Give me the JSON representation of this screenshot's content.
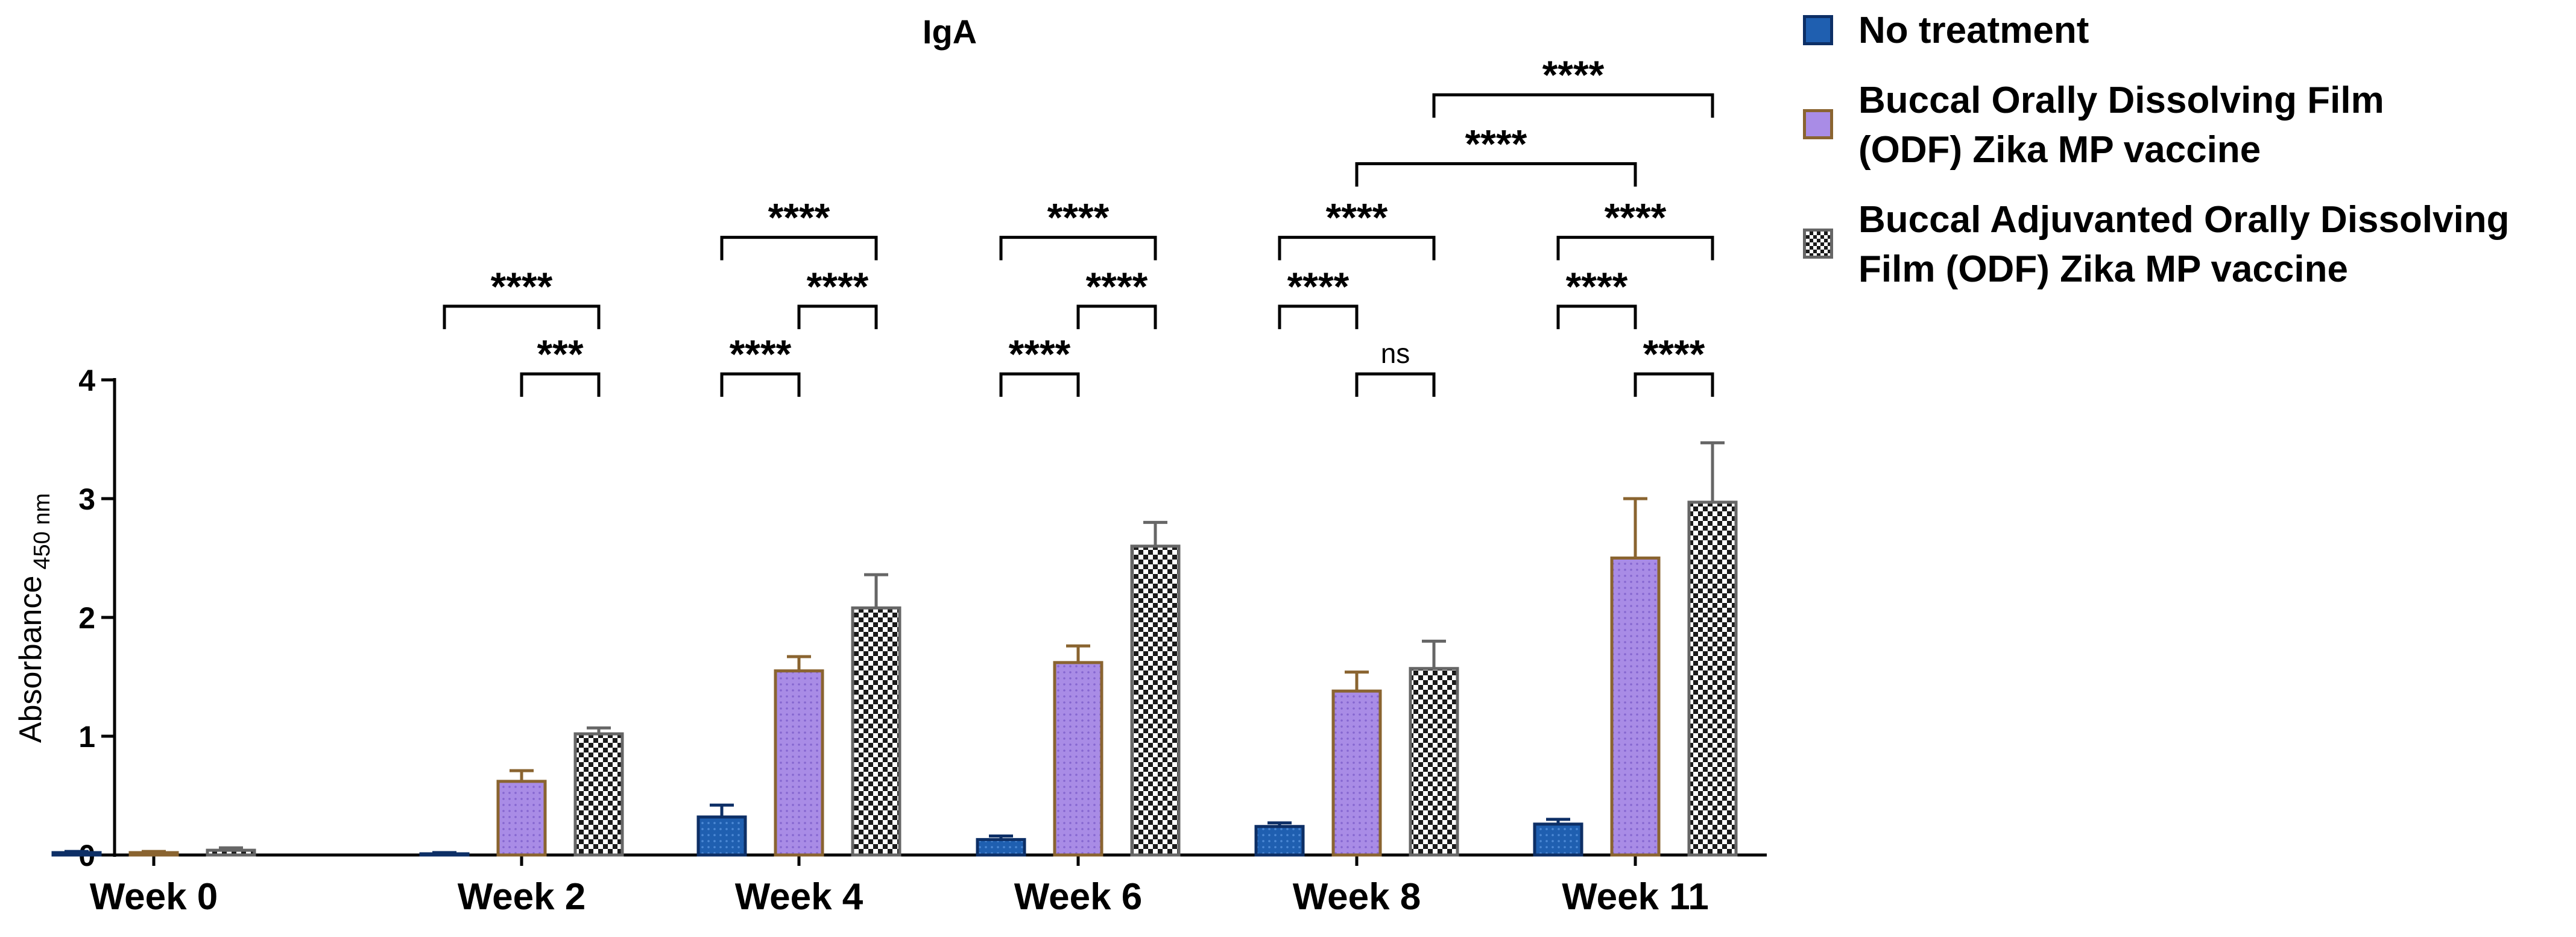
{
  "chart_data": {
    "type": "bar",
    "title": "IgA",
    "ylabel": "Absorbance",
    "ylabel_subscript": "450 nm",
    "xlabel": "",
    "ylim": [
      0,
      4
    ],
    "yticks": [
      "0",
      "1",
      "2",
      "3",
      "4"
    ],
    "categories": [
      "Week 0",
      "Week 2",
      "Week 4",
      "Week 6",
      "Week 8",
      "Week 11"
    ],
    "series": [
      {
        "name": "No treatment",
        "values": [
          0.02,
          0.01,
          0.32,
          0.13,
          0.24,
          0.26
        ],
        "errors": [
          0.01,
          0.01,
          0.1,
          0.03,
          0.03,
          0.04
        ],
        "fill": "#1f5fb0",
        "stroke": "#0d2f66",
        "pattern": "dots"
      },
      {
        "name": "Buccal Orally Dissolving Film\n(ODF) Zika MP vaccine",
        "values": [
          0.02,
          0.62,
          1.55,
          1.62,
          1.38,
          2.5
        ],
        "errors": [
          0.01,
          0.09,
          0.12,
          0.14,
          0.16,
          0.5
        ],
        "fill": "#a98ce6",
        "stroke": "#8a6430",
        "pattern": "dots"
      },
      {
        "name": "Buccal Adjuvanted Orally Dissolving\nFilm (ODF) Zika MP vaccine",
        "values": [
          0.04,
          1.02,
          2.08,
          2.6,
          1.57,
          2.97
        ],
        "errors": [
          0.02,
          0.05,
          0.28,
          0.2,
          0.23,
          0.5
        ],
        "fill": "checker",
        "stroke": "#666666",
        "pattern": "checker"
      }
    ],
    "significance": [
      {
        "group": 1,
        "from": 1,
        "to": 2,
        "label": "***",
        "level": 4.05
      },
      {
        "group": 1,
        "from": 0,
        "to": 2,
        "label": "****",
        "level": 4.62
      },
      {
        "group": 2,
        "from": 0,
        "to": 1,
        "label": "****",
        "level": 4.05
      },
      {
        "group": 2,
        "from": 1,
        "to": 2,
        "label": "****",
        "level": 4.62
      },
      {
        "group": 2,
        "from": 0,
        "to": 2,
        "label": "****",
        "level": 5.2
      },
      {
        "group": 3,
        "from": 0,
        "to": 1,
        "label": "****",
        "level": 4.05
      },
      {
        "group": 3,
        "from": 1,
        "to": 2,
        "label": "****",
        "level": 4.62
      },
      {
        "group": 3,
        "from": 0,
        "to": 2,
        "label": "****",
        "level": 5.2
      },
      {
        "group": 4,
        "from": 1,
        "to": 2,
        "label": "ns",
        "level": 4.05
      },
      {
        "group": 4,
        "from": 0,
        "to": 1,
        "label": "****",
        "level": 4.62
      },
      {
        "group": 4,
        "from": 0,
        "to": 2,
        "label": "****",
        "level": 5.2
      },
      {
        "group": 5,
        "from": 1,
        "to": 2,
        "label": "****",
        "level": 4.05
      },
      {
        "group": 5,
        "from": 0,
        "to": 1,
        "label": "****",
        "level": 4.62
      },
      {
        "group": 5,
        "from": 0,
        "to": 2,
        "label": "****",
        "level": 5.2
      },
      {
        "group": 4,
        "from": 1,
        "to": 5,
        "to_series": 1,
        "label": "****",
        "level": 5.82
      },
      {
        "group": 4,
        "from": 2,
        "to": 5,
        "to_series": 2,
        "label": "****",
        "level": 6.4
      }
    ],
    "legend_position": "right",
    "grid": false
  }
}
